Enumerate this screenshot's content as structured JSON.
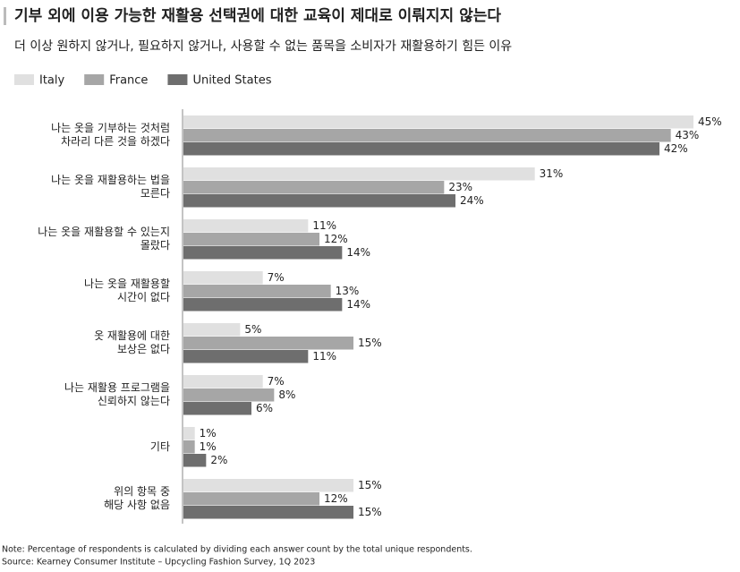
{
  "chart_data": {
    "type": "bar",
    "orientation": "horizontal",
    "title": "기부 외에 이용 가능한 재활용 선택권에 대한 교육이 제대로 이뤄지지 않는다",
    "subtitle": "더 이상 원하지 않거나, 필요하지 않거나, 사용할 수 없는 품목을 소비자가 재활용하기 힘든 이유",
    "categories": [
      "나는 옷을 기부하는 것처럼\n차라리 다른 것을 하겠다",
      "나는 옷을 재활용하는 법을\n모른다",
      "나는 옷을 재활용할 수 있는지\n몰랐다",
      "나는 옷을 재활용할\n시간이 없다",
      "옷 재활용에 대한\n보상은 없다",
      "나는 재활용 프로그램을\n신뢰하지 않는다",
      "기타",
      "위의 항목 중\n해당 사항 없음"
    ],
    "series": [
      {
        "name": "Italy",
        "color": "#e0e0e0",
        "values": [
          45,
          31,
          11,
          7,
          5,
          7,
          1,
          15
        ],
        "value_labels": [
          "45%",
          "31%",
          "11%",
          "7%",
          "5%",
          "7%",
          "1%",
          "15%"
        ]
      },
      {
        "name": "France",
        "color": "#a6a6a6",
        "values": [
          43,
          23,
          12,
          13,
          15,
          8,
          1,
          12
        ],
        "value_labels": [
          "43%",
          "23%",
          "12%",
          "13%",
          "15%",
          "8%",
          "1%",
          "12%"
        ]
      },
      {
        "name": "United States",
        "color": "#6e6e6e",
        "values": [
          42,
          24,
          14,
          14,
          11,
          6,
          2,
          15
        ],
        "value_labels": [
          "42%",
          "24%",
          "14%",
          "14%",
          "11%",
          "6%",
          "2%",
          "15%"
        ]
      }
    ],
    "notes": [
      "Note: Percentage of respondents is calculated by dividing each answer count by the total unique respondents.",
      "Source: Kearney Consumer Institute – Upcycling Fashion Survey, 1Q 2023"
    ]
  }
}
